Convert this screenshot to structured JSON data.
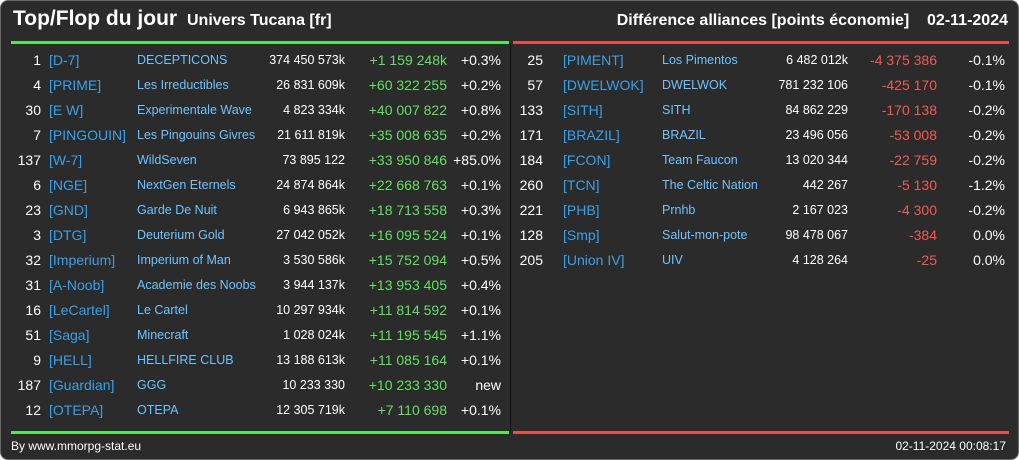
{
  "header": {
    "title": "Top/Flop du jour",
    "subtitle": "Univers Tucana [fr]",
    "right_title": "Différence alliances [points économie]",
    "date": "02-11-2024"
  },
  "colors": {
    "background": "#2b2b2b",
    "top_accent": "#5de15d",
    "flop_accent": "#e0524f",
    "tag": "#3aa0e8",
    "name": "#6ec3ff"
  },
  "top": [
    {
      "rank": "1",
      "tag": "[D-7]",
      "name": "DECEPTICONS",
      "points": "374 450 573k",
      "diff": "+1 159 248k",
      "pct": "+0.3%"
    },
    {
      "rank": "4",
      "tag": "[PRIME]",
      "name": "Les Irreductibles",
      "points": "26 831 609k",
      "diff": "+60 322 255",
      "pct": "+0.2%"
    },
    {
      "rank": "30",
      "tag": "[E W]",
      "name": "Experimentale Wave",
      "points": "4 823 334k",
      "diff": "+40 007 822",
      "pct": "+0.8%"
    },
    {
      "rank": "7",
      "tag": "[PINGOUIN]",
      "name": "Les Pingouins Givres",
      "points": "21 611 819k",
      "diff": "+35 008 635",
      "pct": "+0.2%"
    },
    {
      "rank": "137",
      "tag": "[W-7]",
      "name": "WildSeven",
      "points": "73 895 122",
      "diff": "+33 950 846",
      "pct": "+85.0%"
    },
    {
      "rank": "6",
      "tag": "[NGE]",
      "name": "NextGen Eternels",
      "points": "24 874 864k",
      "diff": "+22 668 763",
      "pct": "+0.1%"
    },
    {
      "rank": "23",
      "tag": "[GND]",
      "name": "Garde De Nuit",
      "points": "6 943 865k",
      "diff": "+18 713 558",
      "pct": "+0.3%"
    },
    {
      "rank": "3",
      "tag": "[DTG]",
      "name": "Deuterium Gold",
      "points": "27 042 052k",
      "diff": "+16 095 524",
      "pct": "+0.1%"
    },
    {
      "rank": "32",
      "tag": "[Imperium]",
      "name": "Imperium of Man",
      "points": "3 530 586k",
      "diff": "+15 752 094",
      "pct": "+0.5%"
    },
    {
      "rank": "31",
      "tag": "[A-Noob]",
      "name": "Academie des Noobs",
      "points": "3 944 137k",
      "diff": "+13 953 405",
      "pct": "+0.4%"
    },
    {
      "rank": "16",
      "tag": "[LeCartel]",
      "name": "Le Cartel",
      "points": "10 297 934k",
      "diff": "+11 814 592",
      "pct": "+0.1%"
    },
    {
      "rank": "51",
      "tag": "[Saga]",
      "name": "Minecraft",
      "points": "1 028 024k",
      "diff": "+11 195 545",
      "pct": "+1.1%"
    },
    {
      "rank": "9",
      "tag": "[HELL]",
      "name": "HELLFIRE CLUB",
      "points": "13 188 613k",
      "diff": "+11 085 164",
      "pct": "+0.1%"
    },
    {
      "rank": "187",
      "tag": "[Guardian]",
      "name": "GGG",
      "points": "10 233 330",
      "diff": "+10 233 330",
      "pct": "new"
    },
    {
      "rank": "12",
      "tag": "[OTEPA]",
      "name": "OTEPA",
      "points": "12 305 719k",
      "diff": "+7 110 698",
      "pct": "+0.1%"
    }
  ],
  "flop": [
    {
      "rank": "25",
      "tag": "[PIMENT]",
      "name": "Los Pimentos",
      "points": "6 482 012k",
      "diff": "-4 375 386",
      "pct": "-0.1%"
    },
    {
      "rank": "57",
      "tag": "[DWELWOK]",
      "name": "DWELWOK",
      "points": "781 232 106",
      "diff": "-425 170",
      "pct": "-0.1%"
    },
    {
      "rank": "133",
      "tag": "[SITH]",
      "name": "SITH",
      "points": "84 862 229",
      "diff": "-170 138",
      "pct": "-0.2%"
    },
    {
      "rank": "171",
      "tag": "[BRAZIL]",
      "name": "BRAZIL",
      "points": "23 496 056",
      "diff": "-53 008",
      "pct": "-0.2%"
    },
    {
      "rank": "184",
      "tag": "[FCON]",
      "name": "Team Faucon",
      "points": "13 020 344",
      "diff": "-22 759",
      "pct": "-0.2%"
    },
    {
      "rank": "260",
      "tag": "[TCN]",
      "name": "The Celtic Nation",
      "points": "442 267",
      "diff": "-5 130",
      "pct": "-1.2%"
    },
    {
      "rank": "221",
      "tag": "[PHB]",
      "name": "Prnhb",
      "points": "2 167 023",
      "diff": "-4 300",
      "pct": "-0.2%"
    },
    {
      "rank": "128",
      "tag": "[Smp]",
      "name": "Salut-mon-pote",
      "points": "98 478 067",
      "diff": "-384",
      "pct": "0.0%"
    },
    {
      "rank": "205",
      "tag": "[Union IV]",
      "name": "UIV",
      "points": "4 128 264",
      "diff": "-25",
      "pct": "0.0%"
    }
  ],
  "footer": {
    "source": "By www.mmorpg-stat.eu",
    "timestamp": "02-11-2024 00:08:17"
  }
}
